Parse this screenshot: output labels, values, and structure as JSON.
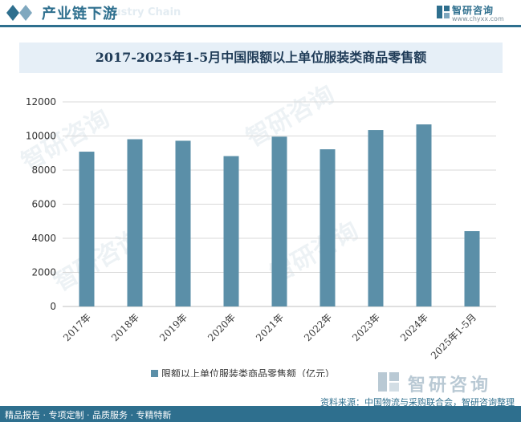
{
  "header": {
    "title": "产业链下游",
    "ghost_text": "Industry Chain"
  },
  "brand": {
    "name": "智研咨询",
    "url": "www.chyxx.com"
  },
  "chart_data": {
    "type": "bar",
    "title": "2017-2025年1-5月中国限额以上单位服装类商品零售额",
    "categories": [
      "2017年",
      "2018年",
      "2019年",
      "2020年",
      "2021年",
      "2022年",
      "2023年",
      "2024年",
      "2025年1-5月"
    ],
    "series": [
      {
        "name": "限额以上单位服装类商品零售额（亿元）",
        "values": [
          9080,
          9810,
          9720,
          8820,
          9960,
          9220,
          10350,
          10680,
          4420
        ]
      }
    ],
    "ylim": [
      0,
      12000
    ],
    "yticks": [
      "0",
      "2000",
      "4000",
      "6000",
      "8000",
      "10000",
      "12000"
    ],
    "grid": true,
    "legend_position": "bottom",
    "colors": {
      "bar": "#5b8fa8",
      "grid": "#d9d9d9"
    }
  },
  "footer": {
    "tagline": "精品报告 · 专项定制 · 品质服务 · 专精特新"
  },
  "source": "资料来源：中国物流与采购联合会，智研咨询整理",
  "watermark": "智研咨询"
}
